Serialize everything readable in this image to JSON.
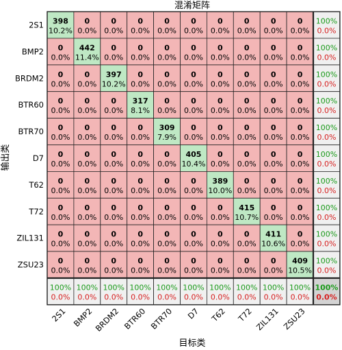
{
  "chart_data": {
    "type": "heatmap",
    "title": "混淆矩阵",
    "xlabel": "目标类",
    "ylabel": "输出类",
    "classes": [
      "2S1",
      "BMP2",
      "BRDM2",
      "BTR60",
      "BTR70",
      "D7",
      "T62",
      "T72",
      "ZIL131",
      "ZSU23"
    ],
    "diagonal_counts": [
      398,
      442,
      397,
      317,
      309,
      405,
      389,
      415,
      411,
      409
    ],
    "diagonal_percents": [
      "10.2%",
      "11.4%",
      "10.2%",
      "8.1%",
      "7.9%",
      "10.4%",
      "10.0%",
      "10.7%",
      "10.6%",
      "10.5%"
    ],
    "off_diagonal_count": "0",
    "off_diagonal_percent": "0.0%",
    "row_summary": {
      "correct": [
        "100%",
        "100%",
        "100%",
        "100%",
        "100%",
        "100%",
        "100%",
        "100%",
        "100%",
        "100%"
      ],
      "error": [
        "0.0%",
        "0.0%",
        "0.0%",
        "0.0%",
        "0.0%",
        "0.0%",
        "0.0%",
        "0.0%",
        "0.0%",
        "0.0%"
      ]
    },
    "col_summary": {
      "correct": [
        "100%",
        "100%",
        "100%",
        "100%",
        "100%",
        "100%",
        "100%",
        "100%",
        "100%",
        "100%"
      ],
      "error": [
        "0.0%",
        "0.0%",
        "0.0%",
        "0.0%",
        "0.0%",
        "0.0%",
        "0.0%",
        "0.0%",
        "0.0%",
        "0.0%"
      ]
    },
    "overall": {
      "correct": "100%",
      "error": "0.0%"
    },
    "colors": {
      "diagonal": "#bfe8c4",
      "off_diagonal": "#f3b6b6",
      "summary": "#f0f0f0",
      "overall": "#d3d3d3",
      "correct_text": "#1a9a1a",
      "error_text": "#d62020",
      "text": "#000000"
    }
  }
}
